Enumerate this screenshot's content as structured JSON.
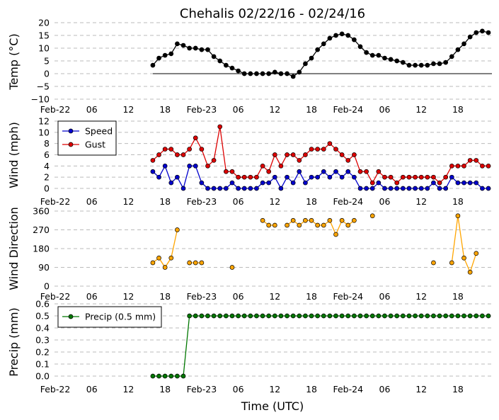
{
  "title": "Chehalis 02/22/16 - 02/24/16",
  "xlabel": "Time (UTC)",
  "x_tick_labels": [
    "Feb-22",
    "06",
    "12",
    "18",
    "Feb-23",
    "06",
    "12",
    "18",
    "Feb-24",
    "06",
    "12",
    "18"
  ],
  "chart_data": [
    {
      "type": "line",
      "ylabel": "Temp ($^\\circ$C)",
      "ylabel_display": "Temp (°C)",
      "ylim": [
        -10,
        20
      ],
      "yticks": [
        "20",
        "15",
        "10",
        "5",
        "0",
        "−5",
        "−10"
      ],
      "grid": true,
      "x_hours_start": 16,
      "x_step_hours": 1,
      "series": [
        {
          "color": "#000000",
          "values": [
            3.3,
            6.1,
            7.2,
            7.8,
            11.7,
            11.1,
            10,
            10,
            9.4,
            9.4,
            6.7,
            5,
            3.3,
            2.2,
            1.1,
            0,
            0,
            0,
            0,
            0,
            0.6,
            0,
            0,
            -1.1,
            0.6,
            3.9,
            6.1,
            9.4,
            11.7,
            13.9,
            15,
            15.6,
            15,
            13.3,
            10.6,
            8.3,
            7.2,
            7.2,
            6.1,
            5.6,
            5,
            4.4,
            3.3,
            3.3,
            3.3,
            3.3,
            3.9,
            3.9,
            4.4,
            6.7,
            9.4,
            11.7,
            14.4,
            16.1,
            16.7,
            16.1
          ]
        }
      ],
      "hline": 0
    },
    {
      "type": "line",
      "ylabel": "Wind (mph)",
      "ylim": [
        -2,
        12
      ],
      "yticks": [
        "12",
        "10",
        "8",
        "6",
        "4",
        "2",
        "0"
      ],
      "grid": true,
      "legend": "top-left",
      "x_hours_start": 16,
      "x_step_hours": 1,
      "series": [
        {
          "name": "Speed",
          "color": "#0000cc",
          "values": [
            3,
            2,
            4,
            1,
            2,
            0,
            4,
            4,
            1,
            0,
            0,
            0,
            0,
            1,
            0,
            0,
            0,
            0,
            1,
            1,
            2,
            0,
            2,
            1,
            3,
            1,
            2,
            2,
            3,
            2,
            3,
            2,
            3,
            2,
            0,
            0,
            0,
            1,
            0,
            0,
            0,
            0,
            0,
            0,
            0,
            0,
            1,
            0,
            0,
            2,
            1,
            1,
            1,
            1,
            0,
            0
          ]
        },
        {
          "name": "Gust",
          "color": "#dd0000",
          "values": [
            5,
            6,
            7,
            7,
            6,
            6,
            7,
            9,
            7,
            4,
            5,
            11,
            3,
            3,
            2,
            2,
            2,
            2,
            4,
            3,
            6,
            4,
            6,
            6,
            5,
            6,
            7,
            7,
            7,
            8,
            7,
            6,
            5,
            6,
            3,
            3,
            1,
            3,
            2,
            2,
            1,
            2,
            2,
            2,
            2,
            2,
            2,
            1,
            2,
            4,
            4,
            4,
            5,
            5,
            4,
            4
          ]
        }
      ]
    },
    {
      "type": "line",
      "ylabel": "Wind Direction",
      "ylim": [
        -30,
        370
      ],
      "yticks": [
        "360",
        "270",
        "180",
        "90",
        "0"
      ],
      "grid": true,
      "x_hours_start": 16,
      "x_step_hours": 1,
      "series": [
        {
          "color": "#ffa500",
          "values": [
            112,
            135,
            90,
            135,
            270,
            null,
            112,
            112,
            112,
            null,
            null,
            null,
            null,
            90,
            null,
            null,
            null,
            null,
            315,
            292,
            292,
            null,
            292,
            315,
            292,
            315,
            315,
            292,
            292,
            315,
            248,
            315,
            292,
            315,
            null,
            null,
            337,
            null,
            null,
            null,
            null,
            null,
            null,
            null,
            null,
            null,
            112,
            null,
            null,
            112,
            337,
            135,
            67,
            157,
            null,
            null
          ]
        }
      ]
    },
    {
      "type": "line",
      "ylabel": "Precip (mm)",
      "ylim": [
        -0.08,
        0.6
      ],
      "yticks": [
        "0.6",
        "0.5",
        "0.4",
        "0.3",
        "0.2",
        "0.1",
        "0.0"
      ],
      "grid": true,
      "legend": "top-left",
      "x_hours_start": 16,
      "x_step_hours": 1,
      "series": [
        {
          "name": "Precip (0.5 mm)",
          "color": "#007700",
          "values": [
            0,
            0,
            0,
            0,
            0,
            0,
            0.5,
            0.5,
            0.5,
            0.5,
            0.5,
            0.5,
            0.5,
            0.5,
            0.5,
            0.5,
            0.5,
            0.5,
            0.5,
            0.5,
            0.5,
            0.5,
            0.5,
            0.5,
            0.5,
            0.5,
            0.5,
            0.5,
            0.5,
            0.5,
            0.5,
            0.5,
            0.5,
            0.5,
            0.5,
            0.5,
            0.5,
            0.5,
            0.5,
            0.5,
            0.5,
            0.5,
            0.5,
            0.5,
            0.5,
            0.5,
            0.5,
            0.5,
            0.5,
            0.5,
            0.5,
            0.5,
            0.5,
            0.5,
            0.5,
            0.5
          ]
        }
      ]
    }
  ]
}
